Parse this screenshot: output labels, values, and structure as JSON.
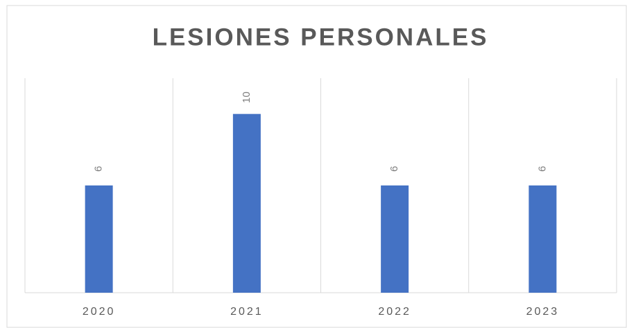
{
  "chart_data": {
    "type": "bar",
    "title": "LESIONES PERSONALES",
    "categories": [
      "2020",
      "2021",
      "2022",
      "2023"
    ],
    "values": [
      6,
      10,
      6,
      6
    ],
    "color": "#4472c4",
    "ylim": [
      0,
      12
    ]
  }
}
